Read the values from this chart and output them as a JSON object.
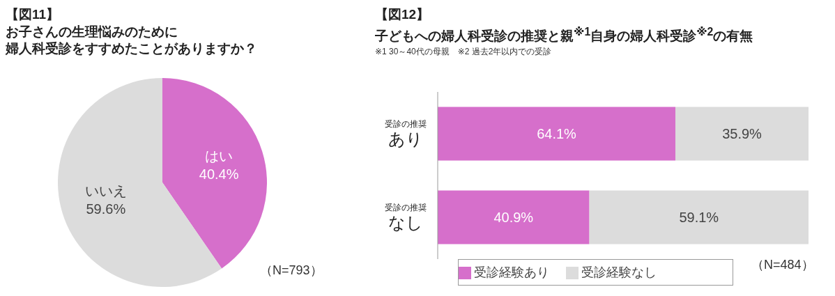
{
  "chart_data": [
    {
      "type": "pie",
      "title": "【図11】",
      "subtitle": "お子さんの生理悩みのために婦人科受診をすすめたことがありますか？",
      "categories": [
        "はい",
        "いいえ"
      ],
      "values": [
        40.4,
        59.6
      ],
      "colors": [
        "#d66fcb",
        "#dcdcdc"
      ],
      "value_labels": [
        "40.4%",
        "59.6%"
      ],
      "annotations": [
        "（N=793）"
      ]
    },
    {
      "type": "bar",
      "orientation": "horizontal",
      "stacked": true,
      "title": "【図12】",
      "subtitle": "子どもへの婦人科受診の推奨と親$^{※1}$自身の婦人科受診$^{※2}$の有無",
      "categories": [
        "$^{受診の推奨}$あり",
        "$^{受診の推奨}$なし"
      ],
      "series": [
        {
          "name": "受診経験あり",
          "color": "#d66fcb",
          "values": [
            64.1,
            40.9
          ],
          "value_labels": [
            "64.1%",
            "40.9%"
          ]
        },
        {
          "name": "受診経験なし",
          "color": "#dcdcdc",
          "values": [
            35.9,
            59.1
          ],
          "value_labels": [
            "35.9%",
            "59.1%"
          ]
        }
      ],
      "tick_labels": "y",
      "legend": "bottom",
      "annotations": [
        "※1 30～40代の母親　※2 過去2年以内での受診",
        "（N=484）"
      ]
    }
  ]
}
